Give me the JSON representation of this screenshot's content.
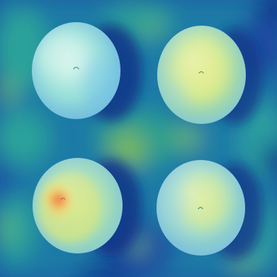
{
  "image": {
    "kind": "heatmap-overlay",
    "subject": "four-circular-pills",
    "colormap": "jet",
    "colors": {
      "background_dark": "#0b2f86",
      "background_teal": "#1e8a9a",
      "pill_base": "#7fd8d2",
      "pill_highlight": "#c9f0e8",
      "pill_yellow": "#d7e87a",
      "hot_red": "#e63a1a",
      "hot_orange": "#f3a33a"
    },
    "pills": [
      {
        "id": "top-left",
        "tone": "cool",
        "hotspot": "none"
      },
      {
        "id": "top-right",
        "tone": "warm",
        "hotspot": "none"
      },
      {
        "id": "bottom-left",
        "tone": "warm",
        "hotspot": "strong"
      },
      {
        "id": "bottom-right",
        "tone": "cool",
        "hotspot": "none"
      }
    ]
  }
}
